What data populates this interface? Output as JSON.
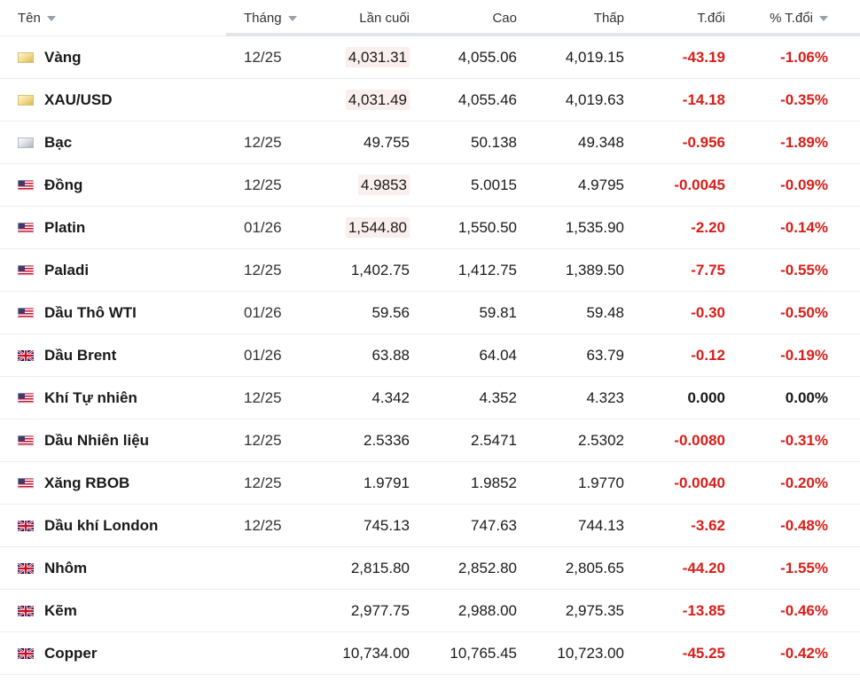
{
  "columns": {
    "name": "Tên",
    "month": "Tháng",
    "last": "Lần cuối",
    "high": "Cao",
    "low": "Thấp",
    "change": "T.đổi",
    "change_pct": "% T.đổi"
  },
  "colors": {
    "negative": "#d91e18",
    "highlight": "#fbeeee"
  },
  "rows": [
    {
      "flag": "gold-flag-icon",
      "name": "Vàng",
      "month": "12/25",
      "last": "4,031.31",
      "last_hl": true,
      "high": "4,055.06",
      "low": "4,019.15",
      "change": "-43.19",
      "change_pct": "-1.06%",
      "trend": "neg"
    },
    {
      "flag": "gold-flag-icon",
      "name": "XAU/USD",
      "month": "",
      "last": "4,031.49",
      "last_hl": true,
      "high": "4,055.46",
      "low": "4,019.63",
      "change": "-14.18",
      "change_pct": "-0.35%",
      "trend": "neg"
    },
    {
      "flag": "silver-flag-icon",
      "name": "Bạc",
      "month": "12/25",
      "last": "49.755",
      "last_hl": false,
      "high": "50.138",
      "low": "49.348",
      "change": "-0.956",
      "change_pct": "-1.89%",
      "trend": "neg"
    },
    {
      "flag": "us-flag-icon",
      "name": "Đồng",
      "month": "12/25",
      "last": "4.9853",
      "last_hl": true,
      "high": "5.0015",
      "low": "4.9795",
      "change": "-0.0045",
      "change_pct": "-0.09%",
      "trend": "neg"
    },
    {
      "flag": "us-flag-icon",
      "name": "Platin",
      "month": "01/26",
      "last": "1,544.80",
      "last_hl": true,
      "high": "1,550.50",
      "low": "1,535.90",
      "change": "-2.20",
      "change_pct": "-0.14%",
      "trend": "neg"
    },
    {
      "flag": "us-flag-icon",
      "name": "Paladi",
      "month": "12/25",
      "last": "1,402.75",
      "last_hl": false,
      "high": "1,412.75",
      "low": "1,389.50",
      "change": "-7.75",
      "change_pct": "-0.55%",
      "trend": "neg"
    },
    {
      "flag": "us-flag-icon",
      "name": "Dầu Thô WTI",
      "month": "01/26",
      "last": "59.56",
      "last_hl": false,
      "high": "59.81",
      "low": "59.48",
      "change": "-0.30",
      "change_pct": "-0.50%",
      "trend": "neg"
    },
    {
      "flag": "uk-flag-icon",
      "name": "Dầu Brent",
      "month": "01/26",
      "last": "63.88",
      "last_hl": false,
      "high": "64.04",
      "low": "63.79",
      "change": "-0.12",
      "change_pct": "-0.19%",
      "trend": "neg"
    },
    {
      "flag": "us-flag-icon",
      "name": "Khí Tự nhiên",
      "month": "12/25",
      "last": "4.342",
      "last_hl": false,
      "high": "4.352",
      "low": "4.323",
      "change": "0.000",
      "change_pct": "0.00%",
      "trend": "flat"
    },
    {
      "flag": "us-flag-icon",
      "name": "Dầu Nhiên liệu",
      "month": "12/25",
      "last": "2.5336",
      "last_hl": false,
      "high": "2.5471",
      "low": "2.5302",
      "change": "-0.0080",
      "change_pct": "-0.31%",
      "trend": "neg"
    },
    {
      "flag": "us-flag-icon",
      "name": "Xăng RBOB",
      "month": "12/25",
      "last": "1.9791",
      "last_hl": false,
      "high": "1.9852",
      "low": "1.9770",
      "change": "-0.0040",
      "change_pct": "-0.20%",
      "trend": "neg"
    },
    {
      "flag": "uk-flag-icon",
      "name": "Dầu khí London",
      "month": "12/25",
      "last": "745.13",
      "last_hl": false,
      "high": "747.63",
      "low": "744.13",
      "change": "-3.62",
      "change_pct": "-0.48%",
      "trend": "neg"
    },
    {
      "flag": "uk-flag-icon",
      "name": "Nhôm",
      "month": "",
      "last": "2,815.80",
      "last_hl": false,
      "high": "2,852.80",
      "low": "2,805.65",
      "change": "-44.20",
      "change_pct": "-1.55%",
      "trend": "neg"
    },
    {
      "flag": "uk-flag-icon",
      "name": "Kẽm",
      "month": "",
      "last": "2,977.75",
      "last_hl": false,
      "high": "2,988.00",
      "low": "2,975.35",
      "change": "-13.85",
      "change_pct": "-0.46%",
      "trend": "neg"
    },
    {
      "flag": "uk-flag-icon",
      "name": "Copper",
      "month": "",
      "last": "10,734.00",
      "last_hl": false,
      "high": "10,765.45",
      "low": "10,723.00",
      "change": "-45.25",
      "change_pct": "-0.42%",
      "trend": "neg"
    }
  ]
}
